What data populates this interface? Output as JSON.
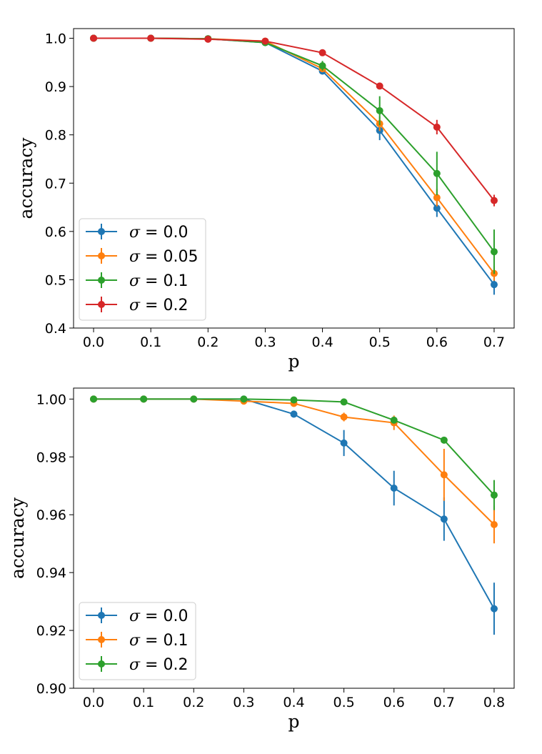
{
  "chart_data": [
    {
      "type": "line",
      "xlabel": "p",
      "ylabel": "accuracy",
      "xlim": [
        -0.035,
        0.735
      ],
      "ylim": [
        0.4,
        1.02
      ],
      "xticks": [
        0.0,
        0.1,
        0.2,
        0.3,
        0.4,
        0.5,
        0.6,
        0.7
      ],
      "xtick_labels": [
        "0.0",
        "0.1",
        "0.2",
        "0.3",
        "0.4",
        "0.5",
        "0.6",
        "0.7"
      ],
      "yticks": [
        0.4,
        0.5,
        0.6,
        0.7,
        0.8,
        0.9,
        1.0
      ],
      "ytick_labels": [
        "0.4",
        "0.5",
        "0.6",
        "0.7",
        "0.8",
        "0.9",
        "1.0"
      ],
      "x": [
        0.0,
        0.1,
        0.2,
        0.3,
        0.4,
        0.5,
        0.6,
        0.7
      ],
      "legend_position": "lower-left",
      "grid": false,
      "series": [
        {
          "name": "σ = 0.0",
          "sigma_value": "0.0",
          "color": "#1f77b4",
          "values": [
            1.0,
            1.0,
            0.999,
            0.991,
            0.932,
            0.809,
            0.648,
            0.49
          ],
          "errors": [
            0.001,
            0.001,
            0.001,
            0.003,
            0.006,
            0.02,
            0.018,
            0.021
          ]
        },
        {
          "name": "σ = 0.05",
          "sigma_value": "0.05",
          "color": "#ff7f0e",
          "values": [
            1.0,
            1.0,
            0.999,
            0.994,
            0.937,
            0.823,
            0.67,
            0.513
          ],
          "errors": [
            0.001,
            0.001,
            0.001,
            0.002,
            0.005,
            0.015,
            0.018,
            0.015
          ]
        },
        {
          "name": "σ = 0.1",
          "sigma_value": "0.1",
          "color": "#2ca02c",
          "values": [
            1.0,
            1.0,
            0.999,
            0.991,
            0.943,
            0.85,
            0.72,
            0.558
          ],
          "errors": [
            0.001,
            0.001,
            0.001,
            0.003,
            0.01,
            0.03,
            0.045,
            0.046
          ]
        },
        {
          "name": "σ = 0.2",
          "sigma_value": "0.2",
          "color": "#d62728",
          "values": [
            1.0,
            1.0,
            0.998,
            0.994,
            0.97,
            0.901,
            0.816,
            0.664
          ],
          "errors": [
            0.001,
            0.001,
            0.001,
            0.002,
            0.004,
            0.004,
            0.015,
            0.012
          ]
        }
      ]
    },
    {
      "type": "line",
      "xlabel": "p",
      "ylabel": "accuracy",
      "xlim": [
        -0.04,
        0.84
      ],
      "ylim": [
        0.9,
        1.0038
      ],
      "xticks": [
        0.0,
        0.1,
        0.2,
        0.3,
        0.4,
        0.5,
        0.6,
        0.7,
        0.8
      ],
      "xtick_labels": [
        "0.0",
        "0.1",
        "0.2",
        "0.3",
        "0.4",
        "0.5",
        "0.6",
        "0.7",
        "0.8"
      ],
      "yticks": [
        0.9,
        0.92,
        0.94,
        0.96,
        0.98,
        1.0
      ],
      "ytick_labels": [
        "0.90",
        "0.92",
        "0.94",
        "0.96",
        "0.98",
        "1.00"
      ],
      "x": [
        0.0,
        0.1,
        0.2,
        0.3,
        0.4,
        0.5,
        0.6,
        0.7,
        0.8
      ],
      "legend_position": "lower-left",
      "grid": false,
      "series": [
        {
          "name": "σ = 0.0",
          "sigma_value": "0.0",
          "color": "#1f77b4",
          "values": [
            1.0,
            1.0,
            1.0,
            1.0,
            0.9948,
            0.9848,
            0.9692,
            0.9585,
            0.9275
          ],
          "errors": [
            0,
            0,
            0,
            0,
            0.0012,
            0.0045,
            0.006,
            0.0075,
            0.009
          ]
        },
        {
          "name": "σ = 0.1",
          "sigma_value": "0.1",
          "color": "#ff7f0e",
          "values": [
            1.0,
            1.0,
            1.0,
            0.9993,
            0.9985,
            0.9938,
            0.9918,
            0.9738,
            0.9566
          ],
          "errors": [
            0,
            0,
            0,
            0.0003,
            0.0004,
            0.0015,
            0.0025,
            0.009,
            0.0065
          ]
        },
        {
          "name": "σ = 0.2",
          "sigma_value": "0.2",
          "color": "#2ca02c",
          "values": [
            1.0,
            1.0,
            1.0,
            1.0,
            0.9997,
            0.999,
            0.9927,
            0.9858,
            0.9668
          ],
          "errors": [
            0,
            0,
            0,
            0,
            0.0002,
            0.0004,
            0.001,
            0.001,
            0.0052
          ]
        }
      ]
    }
  ]
}
